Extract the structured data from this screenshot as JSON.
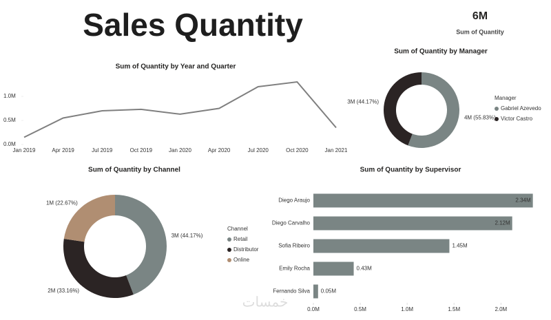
{
  "title": "Sales Quantity",
  "kpi": {
    "value": "6M",
    "label": "Sum of Quantity"
  },
  "watermark": "خمسات",
  "chart_data": [
    {
      "type": "line",
      "title": "Sum of Quantity by Year and Quarter",
      "categories": [
        "Jan 2019",
        "Apr 2019",
        "Jul 2019",
        "Oct 2019",
        "Jan 2020",
        "Apr 2020",
        "Jul 2020",
        "Oct 2020",
        "Jan 2021"
      ],
      "values": [
        150000,
        550000,
        700000,
        730000,
        630000,
        750000,
        1200000,
        1300000,
        350000
      ],
      "color": "#7f7f7f",
      "ylim": [
        0,
        1400000
      ],
      "yticks": [
        {
          "value": 0,
          "label": "0.0M"
        },
        {
          "value": 500000,
          "label": "0.5M"
        },
        {
          "value": 1000000,
          "label": "1.0M"
        }
      ]
    },
    {
      "type": "donut",
      "title": "Sum of Quantity by Manager",
      "legend_title": "Manager",
      "categories": [
        "Gabriel Azevedo",
        "Victor Castro"
      ],
      "values": [
        55.83,
        44.17
      ],
      "value_labels": [
        "4M (55.83%)",
        "3M (44.17%)"
      ],
      "colors": [
        "#7a8584",
        "#2b2424"
      ]
    },
    {
      "type": "donut",
      "title": "Sum of Quantity by Channel",
      "legend_title": "Channel",
      "categories": [
        "Retail",
        "Distributor",
        "Online"
      ],
      "values": [
        44.17,
        33.16,
        22.67
      ],
      "value_labels": [
        "3M (44.17%)",
        "2M (33.16%)",
        "1M (22.67%)"
      ],
      "colors": [
        "#7a8584",
        "#2b2424",
        "#b08e72"
      ]
    },
    {
      "type": "hbar",
      "title": "Sum of Quantity by Supervisor",
      "categories": [
        "Diego Araujo",
        "Diego Carvalho",
        "Sofia Ribeiro",
        "Emily Rocha",
        "Fernando Silva"
      ],
      "values": [
        2340000,
        2120000,
        1450000,
        430000,
        50000
      ],
      "value_labels": [
        "2.34M",
        "2.12M",
        "1.45M",
        "0.43M",
        "0.05M"
      ],
      "color": "#7a8584",
      "xlim": [
        0,
        2350000
      ],
      "xticks": [
        {
          "value": 0,
          "label": "0.0M"
        },
        {
          "value": 500000,
          "label": "0.5M"
        },
        {
          "value": 1000000,
          "label": "1.0M"
        },
        {
          "value": 1500000,
          "label": "1.5M"
        },
        {
          "value": 2000000,
          "label": "2.0M"
        }
      ]
    }
  ]
}
